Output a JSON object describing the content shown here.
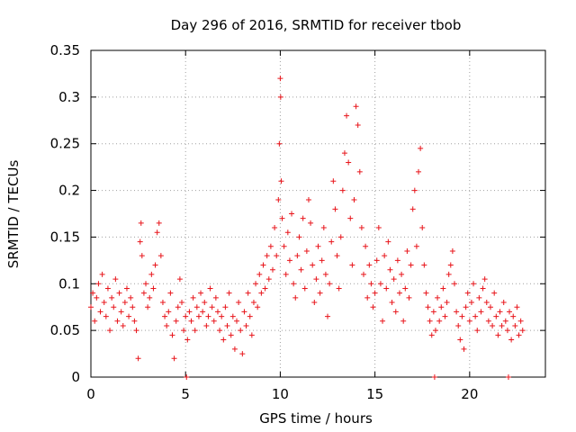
{
  "chart_data": {
    "type": "scatter",
    "title": "Day 296 of 2016, SRMTID for receiver tbob",
    "xlabel": "GPS time / hours",
    "ylabel": "SRMTID / TECUs",
    "xlim": [
      0,
      24
    ],
    "ylim": [
      0,
      0.35
    ],
    "xticks": [
      0,
      5,
      10,
      15,
      20
    ],
    "xtick_labels": [
      "0",
      "5",
      "10",
      "15",
      "20"
    ],
    "yticks": [
      0,
      0.05,
      0.1,
      0.15,
      0.2,
      0.25,
      0.3,
      0.35
    ],
    "ytick_labels": [
      "0",
      "0.05",
      "0.1",
      "0.15",
      "0.2",
      "0.25",
      "0.3",
      "0.35"
    ],
    "grid": true,
    "marker": "+",
    "series": [
      {
        "name": "tbob",
        "color": "#e8141a",
        "points": [
          [
            0.0,
            0.075
          ],
          [
            0.1,
            0.09
          ],
          [
            0.2,
            0.06
          ],
          [
            0.3,
            0.085
          ],
          [
            0.4,
            0.1
          ],
          [
            0.5,
            0.07
          ],
          [
            0.6,
            0.11
          ],
          [
            0.7,
            0.08
          ],
          [
            0.8,
            0.065
          ],
          [
            0.9,
            0.095
          ],
          [
            1.0,
            0.05
          ],
          [
            1.1,
            0.085
          ],
          [
            1.2,
            0.075
          ],
          [
            1.3,
            0.105
          ],
          [
            1.4,
            0.06
          ],
          [
            1.5,
            0.09
          ],
          [
            1.6,
            0.07
          ],
          [
            1.7,
            0.055
          ],
          [
            1.8,
            0.08
          ],
          [
            1.9,
            0.095
          ],
          [
            2.0,
            0.065
          ],
          [
            2.1,
            0.085
          ],
          [
            2.2,
            0.075
          ],
          [
            2.3,
            0.06
          ],
          [
            2.4,
            0.05
          ],
          [
            2.5,
            0.02
          ],
          [
            2.6,
            0.145
          ],
          [
            2.65,
            0.165
          ],
          [
            2.7,
            0.13
          ],
          [
            2.8,
            0.09
          ],
          [
            2.9,
            0.1
          ],
          [
            3.0,
            0.075
          ],
          [
            3.1,
            0.085
          ],
          [
            3.2,
            0.11
          ],
          [
            3.3,
            0.095
          ],
          [
            3.4,
            0.12
          ],
          [
            3.5,
            0.155
          ],
          [
            3.6,
            0.165
          ],
          [
            3.7,
            0.13
          ],
          [
            3.8,
            0.08
          ],
          [
            3.9,
            0.065
          ],
          [
            4.0,
            0.055
          ],
          [
            4.1,
            0.07
          ],
          [
            4.2,
            0.09
          ],
          [
            4.3,
            0.045
          ],
          [
            4.4,
            0.02
          ],
          [
            4.5,
            0.06
          ],
          [
            4.6,
            0.075
          ],
          [
            4.7,
            0.105
          ],
          [
            4.8,
            0.08
          ],
          [
            4.9,
            0.05
          ],
          [
            5.0,
            0.065
          ],
          [
            5.05,
            0.0
          ],
          [
            5.1,
            0.04
          ],
          [
            5.2,
            0.07
          ],
          [
            5.3,
            0.06
          ],
          [
            5.4,
            0.085
          ],
          [
            5.5,
            0.05
          ],
          [
            5.6,
            0.075
          ],
          [
            5.7,
            0.065
          ],
          [
            5.8,
            0.09
          ],
          [
            5.9,
            0.07
          ],
          [
            6.0,
            0.08
          ],
          [
            6.1,
            0.055
          ],
          [
            6.2,
            0.065
          ],
          [
            6.3,
            0.095
          ],
          [
            6.4,
            0.075
          ],
          [
            6.5,
            0.06
          ],
          [
            6.6,
            0.085
          ],
          [
            6.7,
            0.07
          ],
          [
            6.8,
            0.05
          ],
          [
            6.9,
            0.065
          ],
          [
            7.0,
            0.04
          ],
          [
            7.1,
            0.075
          ],
          [
            7.2,
            0.055
          ],
          [
            7.3,
            0.09
          ],
          [
            7.4,
            0.045
          ],
          [
            7.5,
            0.065
          ],
          [
            7.6,
            0.03
          ],
          [
            7.7,
            0.06
          ],
          [
            7.8,
            0.08
          ],
          [
            7.9,
            0.05
          ],
          [
            8.0,
            0.025
          ],
          [
            8.1,
            0.07
          ],
          [
            8.2,
            0.055
          ],
          [
            8.3,
            0.09
          ],
          [
            8.4,
            0.065
          ],
          [
            8.5,
            0.045
          ],
          [
            8.6,
            0.08
          ],
          [
            8.7,
            0.1
          ],
          [
            8.8,
            0.075
          ],
          [
            8.9,
            0.11
          ],
          [
            9.0,
            0.09
          ],
          [
            9.1,
            0.12
          ],
          [
            9.2,
            0.095
          ],
          [
            9.3,
            0.13
          ],
          [
            9.4,
            0.105
          ],
          [
            9.5,
            0.14
          ],
          [
            9.6,
            0.115
          ],
          [
            9.7,
            0.16
          ],
          [
            9.8,
            0.13
          ],
          [
            9.9,
            0.19
          ],
          [
            9.95,
            0.25
          ],
          [
            10.0,
            0.32
          ],
          [
            10.02,
            0.3
          ],
          [
            10.05,
            0.21
          ],
          [
            10.1,
            0.17
          ],
          [
            10.2,
            0.14
          ],
          [
            10.3,
            0.11
          ],
          [
            10.4,
            0.155
          ],
          [
            10.5,
            0.125
          ],
          [
            10.6,
            0.175
          ],
          [
            10.7,
            0.1
          ],
          [
            10.8,
            0.085
          ],
          [
            10.9,
            0.13
          ],
          [
            11.0,
            0.15
          ],
          [
            11.1,
            0.115
          ],
          [
            11.2,
            0.17
          ],
          [
            11.3,
            0.095
          ],
          [
            11.4,
            0.135
          ],
          [
            11.5,
            0.19
          ],
          [
            11.6,
            0.165
          ],
          [
            11.7,
            0.12
          ],
          [
            11.8,
            0.08
          ],
          [
            11.9,
            0.105
          ],
          [
            12.0,
            0.14
          ],
          [
            12.1,
            0.09
          ],
          [
            12.2,
            0.125
          ],
          [
            12.3,
            0.16
          ],
          [
            12.4,
            0.11
          ],
          [
            12.5,
            0.065
          ],
          [
            12.6,
            0.1
          ],
          [
            12.7,
            0.145
          ],
          [
            12.8,
            0.21
          ],
          [
            12.9,
            0.18
          ],
          [
            13.0,
            0.13
          ],
          [
            13.1,
            0.095
          ],
          [
            13.2,
            0.15
          ],
          [
            13.3,
            0.2
          ],
          [
            13.4,
            0.24
          ],
          [
            13.5,
            0.28
          ],
          [
            13.6,
            0.23
          ],
          [
            13.7,
            0.17
          ],
          [
            13.8,
            0.12
          ],
          [
            13.9,
            0.19
          ],
          [
            14.0,
            0.29
          ],
          [
            14.1,
            0.27
          ],
          [
            14.2,
            0.22
          ],
          [
            14.3,
            0.16
          ],
          [
            14.4,
            0.11
          ],
          [
            14.5,
            0.14
          ],
          [
            14.6,
            0.085
          ],
          [
            14.7,
            0.12
          ],
          [
            14.8,
            0.1
          ],
          [
            14.9,
            0.075
          ],
          [
            15.0,
            0.09
          ],
          [
            15.1,
            0.125
          ],
          [
            15.2,
            0.16
          ],
          [
            15.3,
            0.1
          ],
          [
            15.4,
            0.06
          ],
          [
            15.5,
            0.13
          ],
          [
            15.6,
            0.095
          ],
          [
            15.7,
            0.145
          ],
          [
            15.8,
            0.115
          ],
          [
            15.9,
            0.08
          ],
          [
            16.0,
            0.105
          ],
          [
            16.1,
            0.07
          ],
          [
            16.2,
            0.125
          ],
          [
            16.3,
            0.09
          ],
          [
            16.4,
            0.11
          ],
          [
            16.5,
            0.06
          ],
          [
            16.6,
            0.095
          ],
          [
            16.7,
            0.135
          ],
          [
            16.8,
            0.085
          ],
          [
            16.9,
            0.12
          ],
          [
            17.0,
            0.18
          ],
          [
            17.1,
            0.2
          ],
          [
            17.2,
            0.14
          ],
          [
            17.3,
            0.22
          ],
          [
            17.4,
            0.245
          ],
          [
            17.5,
            0.16
          ],
          [
            17.6,
            0.12
          ],
          [
            17.7,
            0.09
          ],
          [
            17.8,
            0.075
          ],
          [
            17.9,
            0.06
          ],
          [
            18.0,
            0.045
          ],
          [
            18.1,
            0.07
          ],
          [
            18.15,
            0.0
          ],
          [
            18.2,
            0.05
          ],
          [
            18.3,
            0.085
          ],
          [
            18.4,
            0.06
          ],
          [
            18.5,
            0.075
          ],
          [
            18.6,
            0.095
          ],
          [
            18.7,
            0.065
          ],
          [
            18.8,
            0.08
          ],
          [
            18.9,
            0.11
          ],
          [
            19.0,
            0.12
          ],
          [
            19.1,
            0.135
          ],
          [
            19.2,
            0.1
          ],
          [
            19.3,
            0.07
          ],
          [
            19.4,
            0.055
          ],
          [
            19.5,
            0.04
          ],
          [
            19.6,
            0.065
          ],
          [
            19.7,
            0.03
          ],
          [
            19.8,
            0.075
          ],
          [
            19.9,
            0.09
          ],
          [
            20.0,
            0.06
          ],
          [
            20.1,
            0.08
          ],
          [
            20.2,
            0.1
          ],
          [
            20.3,
            0.065
          ],
          [
            20.4,
            0.05
          ],
          [
            20.5,
            0.085
          ],
          [
            20.6,
            0.07
          ],
          [
            20.7,
            0.095
          ],
          [
            20.8,
            0.105
          ],
          [
            20.9,
            0.08
          ],
          [
            21.0,
            0.06
          ],
          [
            21.1,
            0.075
          ],
          [
            21.2,
            0.055
          ],
          [
            21.3,
            0.09
          ],
          [
            21.4,
            0.065
          ],
          [
            21.5,
            0.045
          ],
          [
            21.6,
            0.07
          ],
          [
            21.7,
            0.055
          ],
          [
            21.8,
            0.08
          ],
          [
            21.9,
            0.06
          ],
          [
            22.0,
            0.05
          ],
          [
            22.05,
            0.0
          ],
          [
            22.1,
            0.07
          ],
          [
            22.2,
            0.04
          ],
          [
            22.3,
            0.065
          ],
          [
            22.4,
            0.055
          ],
          [
            22.5,
            0.075
          ],
          [
            22.6,
            0.045
          ],
          [
            22.7,
            0.06
          ],
          [
            22.8,
            0.05
          ]
        ]
      }
    ]
  }
}
